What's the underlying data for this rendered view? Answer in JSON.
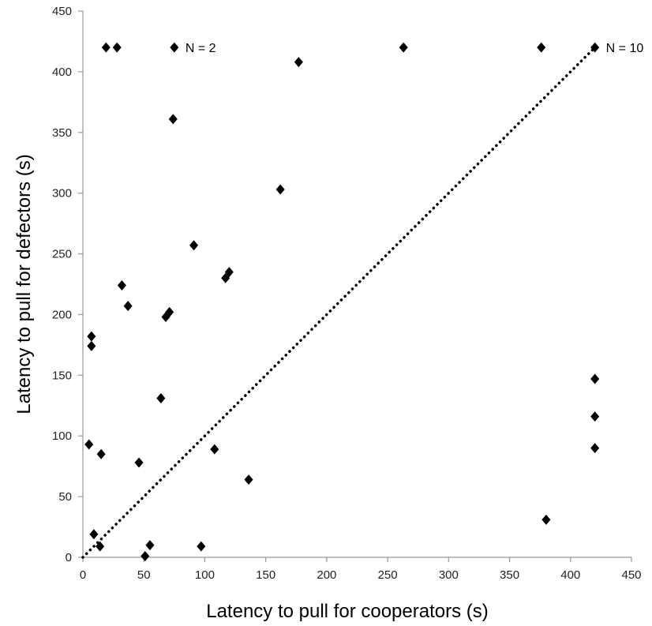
{
  "chart_data": {
    "type": "scatter",
    "title": "",
    "xlabel": "Latency to pull for cooperators (s)",
    "ylabel": "Latency to pull for defectors (s)",
    "xlim": [
      0,
      450
    ],
    "ylim": [
      0,
      450
    ],
    "xticks": [
      0,
      50,
      100,
      150,
      200,
      250,
      300,
      350,
      400,
      450
    ],
    "yticks": [
      0,
      50,
      100,
      150,
      200,
      250,
      300,
      350,
      400,
      450
    ],
    "grid": false,
    "legend": "none",
    "marker": "diamond",
    "marker_color": "#000000",
    "reference_line": {
      "style": "dotted",
      "from": [
        0,
        0
      ],
      "to": [
        420,
        420
      ],
      "color": "#000000"
    },
    "annotations": [
      {
        "text": "N = 2",
        "x": 75,
        "y": 420
      },
      {
        "text": "N = 10",
        "x": 420,
        "y": 420
      }
    ],
    "points": [
      {
        "x": 19,
        "y": 420
      },
      {
        "x": 28,
        "y": 420
      },
      {
        "x": 75,
        "y": 420
      },
      {
        "x": 263,
        "y": 420
      },
      {
        "x": 376,
        "y": 420
      },
      {
        "x": 420,
        "y": 420
      },
      {
        "x": 177,
        "y": 408
      },
      {
        "x": 74,
        "y": 361
      },
      {
        "x": 162,
        "y": 303
      },
      {
        "x": 91,
        "y": 257
      },
      {
        "x": 120,
        "y": 235
      },
      {
        "x": 117,
        "y": 230
      },
      {
        "x": 32,
        "y": 224
      },
      {
        "x": 37,
        "y": 207
      },
      {
        "x": 71,
        "y": 202
      },
      {
        "x": 68,
        "y": 198
      },
      {
        "x": 7,
        "y": 182
      },
      {
        "x": 7,
        "y": 174
      },
      {
        "x": 420,
        "y": 147
      },
      {
        "x": 64,
        "y": 131
      },
      {
        "x": 420,
        "y": 116
      },
      {
        "x": 5,
        "y": 93
      },
      {
        "x": 420,
        "y": 90
      },
      {
        "x": 108,
        "y": 89
      },
      {
        "x": 15,
        "y": 85
      },
      {
        "x": 46,
        "y": 78
      },
      {
        "x": 136,
        "y": 64
      },
      {
        "x": 380,
        "y": 31
      },
      {
        "x": 9,
        "y": 19
      },
      {
        "x": 55,
        "y": 10
      },
      {
        "x": 14,
        "y": 9
      },
      {
        "x": 97,
        "y": 9
      },
      {
        "x": 51,
        "y": 1
      }
    ]
  }
}
